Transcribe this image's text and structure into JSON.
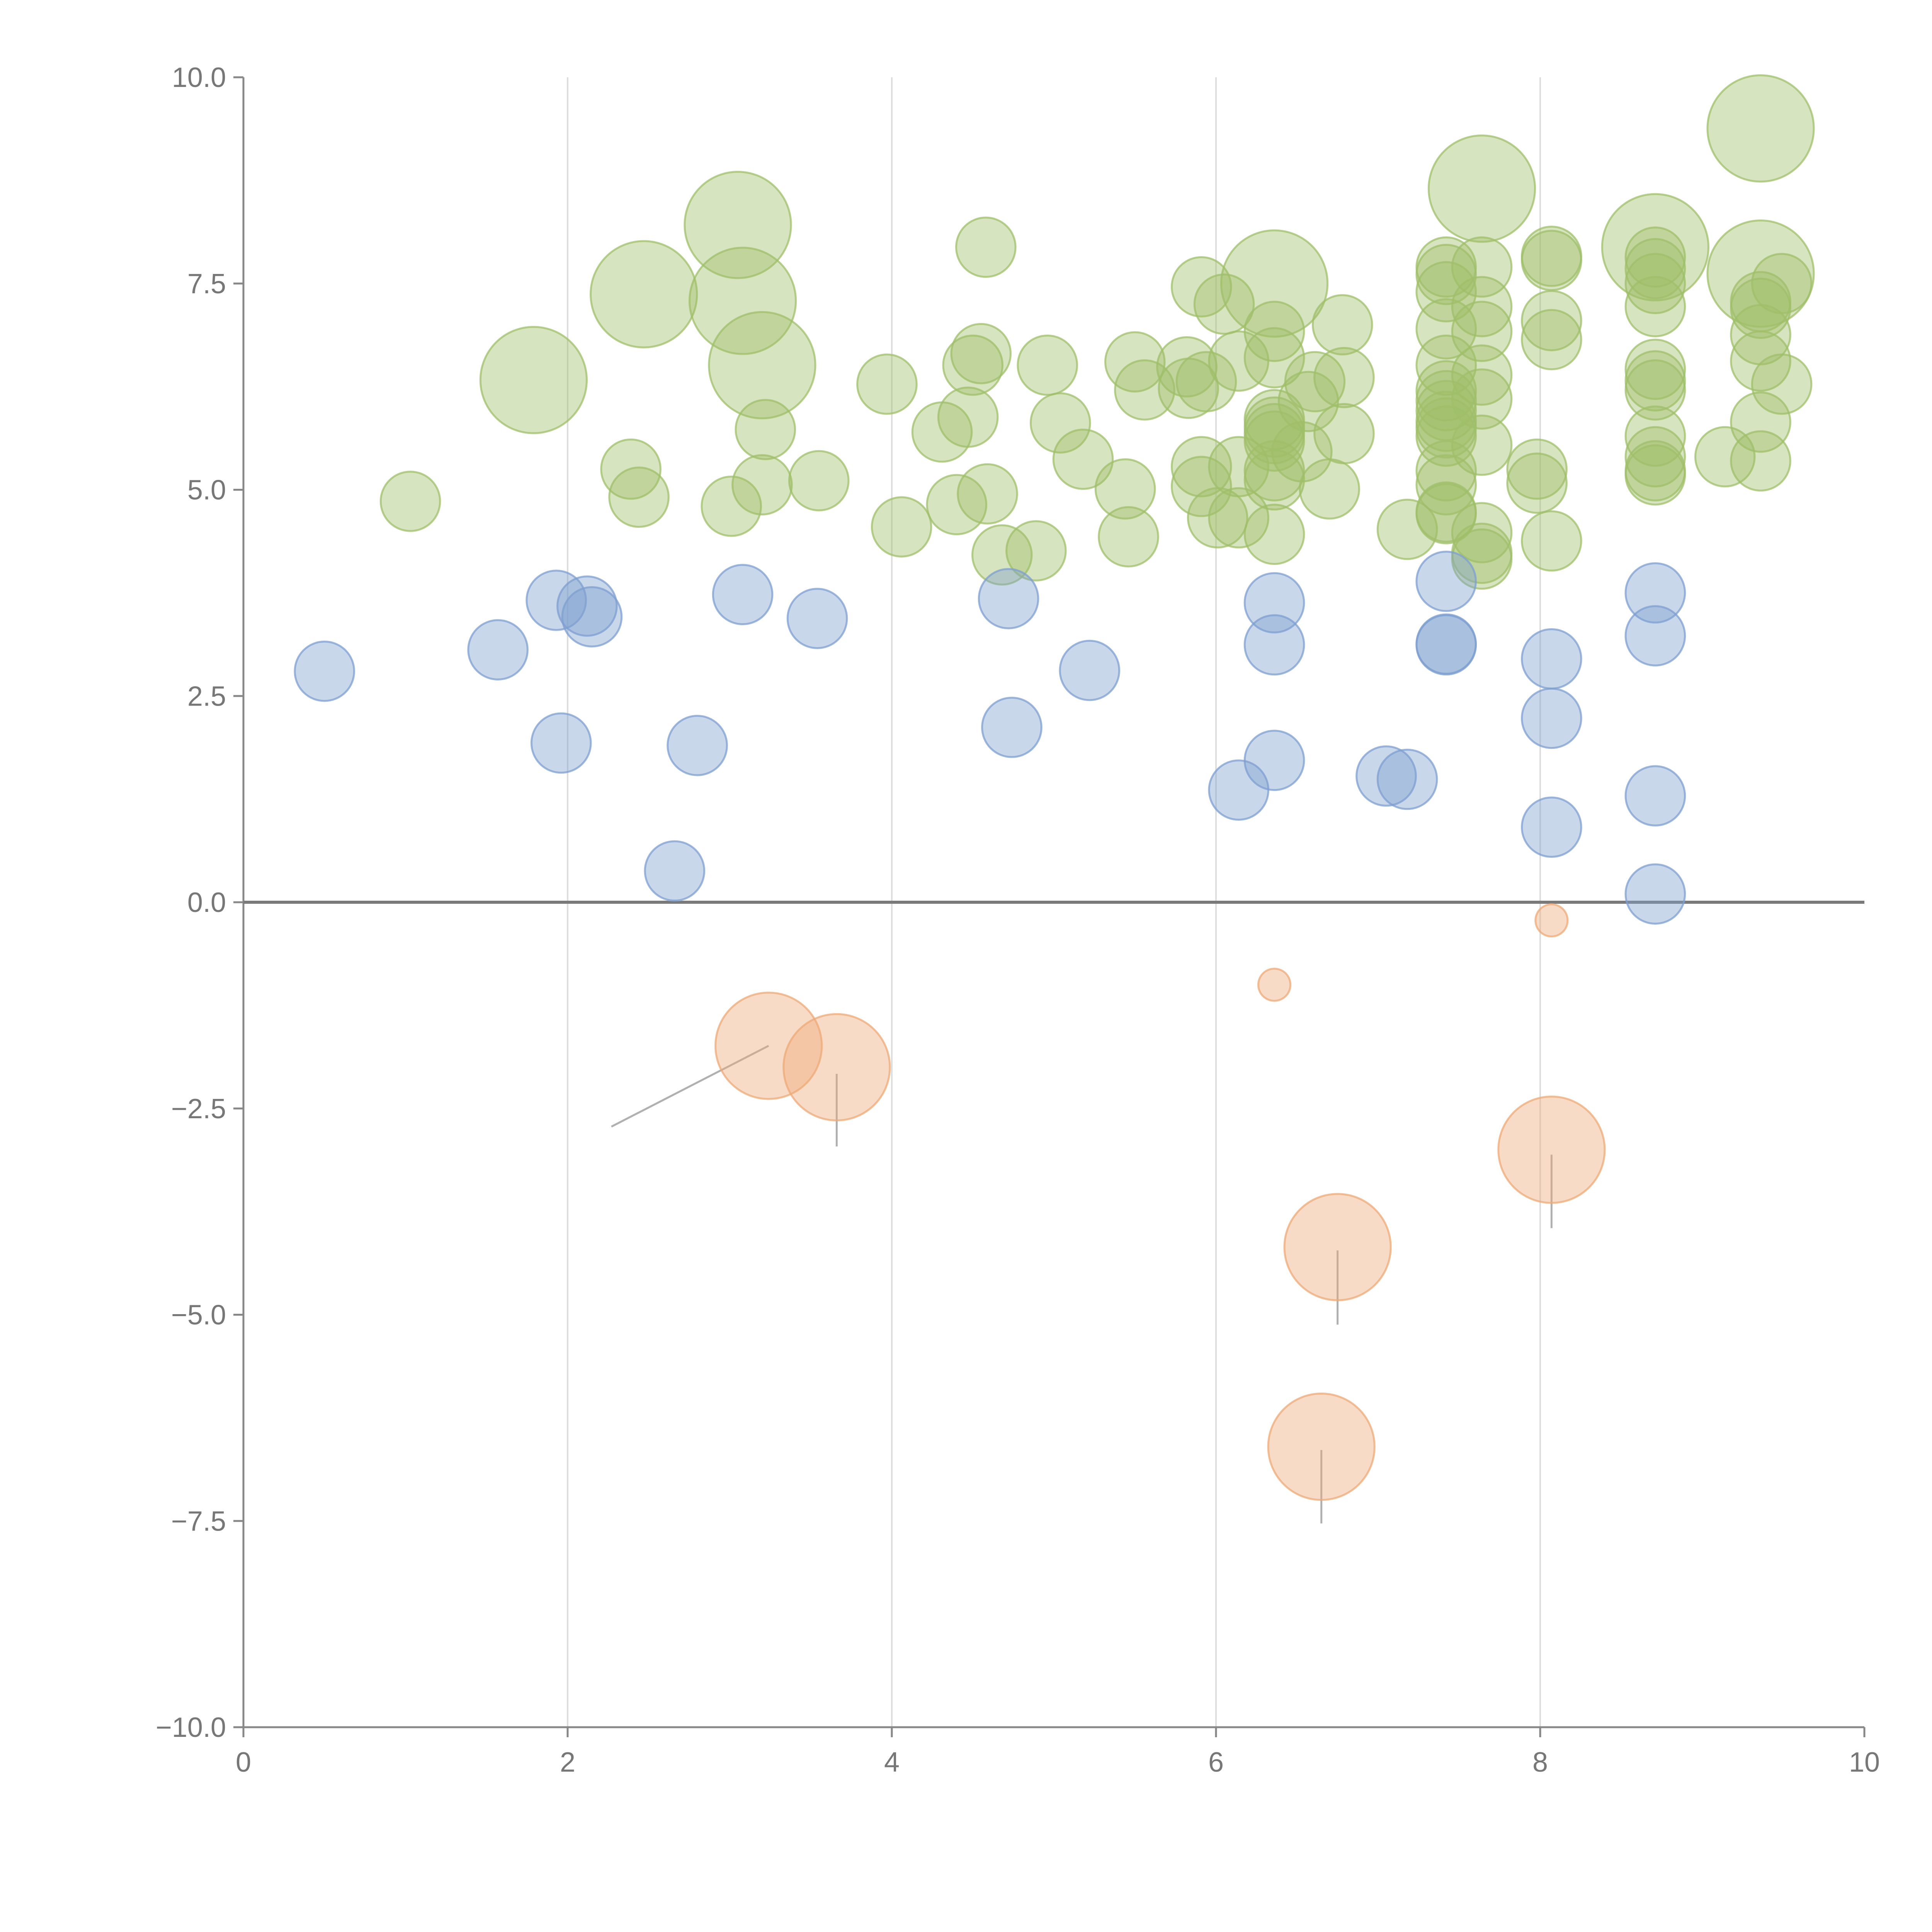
{
  "chart_data": {
    "type": "scatter",
    "title": "",
    "xlabel": "",
    "ylabel": "",
    "xlim": [
      0,
      10
    ],
    "ylim": [
      -10,
      10
    ],
    "x_ticks": [
      0,
      2,
      4,
      6,
      8,
      10
    ],
    "x_tick_labels": [
      "0",
      "2",
      "4",
      "6",
      "8",
      "10"
    ],
    "y_ticks": [
      10,
      7.5,
      5,
      2.5,
      0,
      -2.5,
      -5,
      -7.5,
      -10
    ],
    "y_tick_labels": [
      "10.0",
      "7.5",
      "5.0",
      "2.5",
      "0.0",
      "−2.5",
      "−5.0",
      "−7.5",
      "−10.0"
    ],
    "grid": "vertical",
    "zero_line": true,
    "series": [
      {
        "name": "green",
        "color": "#9fbf6a",
        "points": [
          [
            1.03,
            4.86,
            1
          ],
          [
            1.79,
            6.33,
            2
          ],
          [
            2.39,
            5.25,
            1
          ],
          [
            2.44,
            4.91,
            1
          ],
          [
            2.47,
            7.37,
            2
          ],
          [
            3.01,
            4.8,
            1
          ],
          [
            3.05,
            8.21,
            2
          ],
          [
            3.08,
            7.29,
            2
          ],
          [
            3.2,
            5.06,
            1
          ],
          [
            3.22,
            5.73,
            1
          ],
          [
            3.2,
            6.51,
            2
          ],
          [
            3.55,
            5.11,
            1
          ],
          [
            3.97,
            6.28,
            1
          ],
          [
            4.06,
            4.55,
            1
          ],
          [
            4.31,
            5.7,
            1
          ],
          [
            4.4,
            4.82,
            1
          ],
          [
            4.47,
            5.88,
            1
          ],
          [
            4.5,
            6.51,
            1
          ],
          [
            4.55,
            6.65,
            1
          ],
          [
            4.58,
            7.94,
            1
          ],
          [
            4.59,
            4.95,
            1
          ],
          [
            4.68,
            4.21,
            1
          ],
          [
            4.89,
            4.26,
            1
          ],
          [
            4.96,
            6.51,
            1
          ],
          [
            5.04,
            5.81,
            1
          ],
          [
            5.18,
            5.37,
            1
          ],
          [
            5.44,
            5.01,
            1
          ],
          [
            5.46,
            4.43,
            1
          ],
          [
            5.5,
            6.55,
            1
          ],
          [
            5.56,
            6.21,
            1
          ],
          [
            5.82,
            6.49,
            1
          ],
          [
            5.83,
            6.23,
            1
          ],
          [
            5.91,
            7.46,
            1
          ],
          [
            5.91,
            5.28,
            1
          ],
          [
            5.91,
            5.04,
            1
          ],
          [
            5.94,
            6.31,
            1
          ],
          [
            6.01,
            4.66,
            1
          ],
          [
            6.05,
            7.25,
            1
          ],
          [
            6.14,
            6.56,
            1
          ],
          [
            6.14,
            5.28,
            1
          ],
          [
            6.14,
            4.66,
            1
          ],
          [
            6.36,
            7.5,
            2
          ],
          [
            6.36,
            6.92,
            1
          ],
          [
            6.36,
            6.6,
            1
          ],
          [
            6.36,
            5.85,
            1
          ],
          [
            6.36,
            5.76,
            1
          ],
          [
            6.36,
            5.68,
            1
          ],
          [
            6.36,
            5.59,
            1
          ],
          [
            6.36,
            5.23,
            1
          ],
          [
            6.36,
            5.12,
            1
          ],
          [
            6.36,
            4.46,
            1
          ],
          [
            6.53,
            5.46,
            1
          ],
          [
            6.57,
            6.07,
            1
          ],
          [
            6.61,
            6.31,
            1
          ],
          [
            6.7,
            5.01,
            1
          ],
          [
            6.78,
            7.0,
            1
          ],
          [
            6.79,
            6.36,
            1
          ],
          [
            6.79,
            5.68,
            1
          ],
          [
            7.18,
            4.52,
            1
          ],
          [
            7.42,
            7.7,
            1
          ],
          [
            7.42,
            7.61,
            1
          ],
          [
            7.42,
            7.4,
            1
          ],
          [
            7.42,
            6.95,
            1
          ],
          [
            7.42,
            6.51,
            1
          ],
          [
            7.42,
            6.2,
            1
          ],
          [
            7.42,
            6.08,
            1
          ],
          [
            7.42,
            5.96,
            1
          ],
          [
            7.42,
            5.83,
            1
          ],
          [
            7.42,
            5.75,
            1
          ],
          [
            7.42,
            5.65,
            1
          ],
          [
            7.42,
            5.23,
            1
          ],
          [
            7.42,
            5.06,
            1
          ],
          [
            7.42,
            4.73,
            1
          ],
          [
            7.42,
            4.71,
            1
          ],
          [
            7.64,
            8.65,
            2
          ],
          [
            7.64,
            7.7,
            1
          ],
          [
            7.64,
            7.22,
            1
          ],
          [
            7.64,
            6.92,
            1
          ],
          [
            7.64,
            6.39,
            1
          ],
          [
            7.64,
            6.1,
            1
          ],
          [
            7.64,
            5.54,
            1
          ],
          [
            7.64,
            4.48,
            1
          ],
          [
            7.64,
            4.23,
            1
          ],
          [
            7.64,
            4.16,
            1
          ],
          [
            7.98,
            5.25,
            1
          ],
          [
            7.98,
            5.08,
            1
          ],
          [
            8.07,
            7.83,
            1
          ],
          [
            8.07,
            7.78,
            1
          ],
          [
            8.07,
            7.05,
            1
          ],
          [
            8.07,
            6.82,
            1
          ],
          [
            8.07,
            4.38,
            1
          ],
          [
            8.71,
            7.94,
            2
          ],
          [
            8.71,
            7.82,
            1
          ],
          [
            8.71,
            7.68,
            1
          ],
          [
            8.71,
            7.5,
            1
          ],
          [
            8.71,
            7.22,
            1
          ],
          [
            8.71,
            6.46,
            1
          ],
          [
            8.71,
            6.32,
            1
          ],
          [
            8.71,
            6.21,
            1
          ],
          [
            8.71,
            5.65,
            1
          ],
          [
            8.71,
            5.4,
            1
          ],
          [
            8.71,
            5.23,
            1
          ],
          [
            8.71,
            5.18,
            1
          ],
          [
            9.14,
            5.4,
            1
          ],
          [
            9.36,
            9.38,
            2
          ],
          [
            9.36,
            7.62,
            2
          ],
          [
            9.36,
            7.28,
            1
          ],
          [
            9.36,
            7.2,
            1
          ],
          [
            9.36,
            6.88,
            1
          ],
          [
            9.36,
            6.56,
            1
          ],
          [
            9.36,
            5.82,
            1
          ],
          [
            9.36,
            5.35,
            1
          ],
          [
            9.49,
            7.5,
            1
          ],
          [
            9.49,
            6.28,
            1
          ]
        ]
      },
      {
        "name": "blue",
        "color": "#7e9fd0",
        "points": [
          [
            0.5,
            2.8,
            1
          ],
          [
            1.57,
            3.06,
            1
          ],
          [
            1.93,
            3.66,
            1
          ],
          [
            1.96,
            1.93,
            1
          ],
          [
            2.12,
            3.59,
            1
          ],
          [
            2.15,
            3.46,
            1
          ],
          [
            2.66,
            0.38,
            1
          ],
          [
            2.8,
            1.9,
            1
          ],
          [
            3.08,
            3.73,
            1
          ],
          [
            3.54,
            3.44,
            1
          ],
          [
            4.72,
            3.68,
            1
          ],
          [
            4.74,
            2.12,
            1
          ],
          [
            5.22,
            2.81,
            1
          ],
          [
            6.14,
            1.36,
            1
          ],
          [
            6.36,
            3.63,
            1
          ],
          [
            6.36,
            3.12,
            1
          ],
          [
            6.36,
            1.72,
            1
          ],
          [
            7.05,
            1.53,
            1
          ],
          [
            7.18,
            1.49,
            1
          ],
          [
            7.42,
            3.89,
            1
          ],
          [
            7.42,
            3.13,
            1
          ],
          [
            7.42,
            3.12,
            1
          ],
          [
            8.07,
            2.95,
            1
          ],
          [
            8.07,
            2.23,
            1
          ],
          [
            8.07,
            0.91,
            1
          ],
          [
            8.71,
            3.75,
            1
          ],
          [
            8.71,
            3.23,
            1
          ],
          [
            8.71,
            1.29,
            1
          ],
          [
            8.71,
            0.1,
            1
          ]
        ]
      },
      {
        "name": "orange",
        "color": "#eeaa77",
        "points": [
          [
            3.24,
            -1.74,
            2
          ],
          [
            3.66,
            -2.0,
            2
          ],
          [
            6.36,
            -1.0,
            0
          ],
          [
            6.75,
            -4.18,
            2
          ],
          [
            6.65,
            -6.6,
            2
          ],
          [
            8.07,
            -0.22,
            0
          ],
          [
            8.07,
            -3.0,
            2
          ]
        ]
      }
    ],
    "size_levels": [
      13,
      24,
      43
    ],
    "leader_lines": [
      {
        "color": "#b0b0b0",
        "from": [
          3.24,
          -1.74
        ],
        "to": [
          2.27,
          -2.72
        ]
      },
      {
        "color": "#b0b0b0",
        "from": [
          3.66,
          -2.08
        ],
        "to": [
          3.66,
          -2.96
        ]
      },
      {
        "color": "#b0b0b0",
        "from": [
          6.75,
          -4.22
        ],
        "to": [
          6.75,
          -5.12
        ]
      },
      {
        "color": "#b0b0b0",
        "from": [
          6.65,
          -6.64
        ],
        "to": [
          6.65,
          -7.53
        ]
      },
      {
        "color": "#b0b0b0",
        "from": [
          8.07,
          -3.06
        ],
        "to": [
          8.07,
          -3.95
        ]
      },
      {
        "color": "#ffffff",
        "from": [
          1.79,
          6.28
        ],
        "to": [
          1.63,
          6.08
        ]
      },
      {
        "color": "#ffffff",
        "from": [
          2.47,
          7.37
        ],
        "to": [
          2.47,
          7.0
        ]
      },
      {
        "color": "#ffffff",
        "from": [
          3.05,
          8.2
        ],
        "to": [
          3.17,
          8.4
        ]
      },
      {
        "color": "#ffffff",
        "from": [
          3.08,
          7.29
        ],
        "to": [
          3.22,
          7.04
        ]
      },
      {
        "color": "#ffffff",
        "from": [
          3.2,
          6.46
        ],
        "to": [
          3.45,
          5.2
        ]
      },
      {
        "color": "#ffffff",
        "from": [
          7.64,
          8.65
        ],
        "to": [
          7.41,
          8.8
        ]
      },
      {
        "color": "#ffffff",
        "from": [
          8.71,
          7.94
        ],
        "to": [
          9.02,
          7.85
        ]
      },
      {
        "color": "#ffffff",
        "from": [
          9.36,
          9.38
        ],
        "to": [
          9.24,
          9.4
        ]
      },
      {
        "color": "#ffffff",
        "from": [
          9.36,
          7.62
        ],
        "to": [
          9.36,
          5.35
        ]
      }
    ]
  }
}
